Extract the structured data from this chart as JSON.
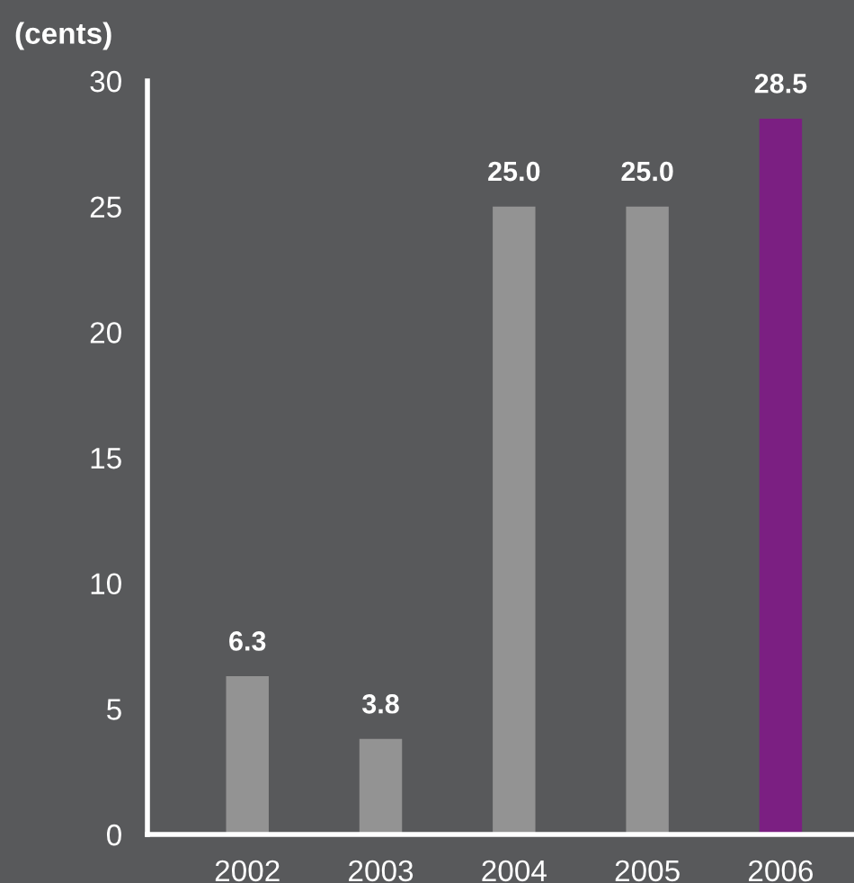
{
  "chart_data": {
    "type": "bar",
    "ylabel": "(cents)",
    "categories": [
      "2002",
      "2003",
      "2004",
      "2005",
      "2006"
    ],
    "values": [
      6.3,
      3.8,
      25.0,
      25.0,
      28.5
    ],
    "value_labels": [
      "6.3",
      "3.8",
      "25.0",
      "25.0",
      "28.5"
    ],
    "colors": [
      "#939393",
      "#939393",
      "#939393",
      "#939393",
      "#7b1f82"
    ],
    "ylim": [
      0,
      30
    ],
    "yticks": [
      0,
      5,
      10,
      15,
      20,
      25,
      30
    ],
    "grid": false,
    "legend": false
  }
}
